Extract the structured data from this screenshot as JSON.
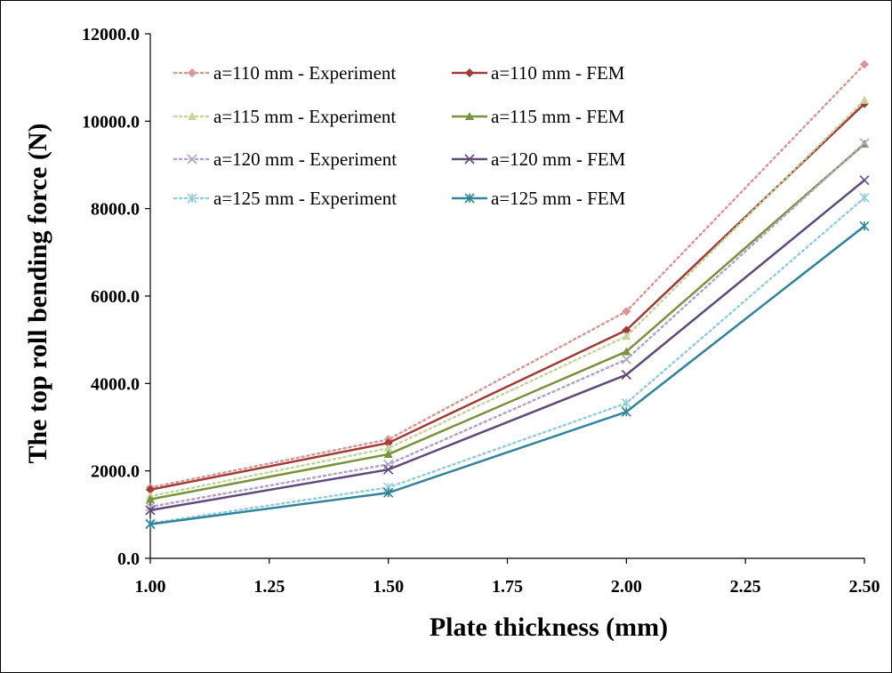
{
  "chart_data": {
    "type": "line",
    "xlabel": "Plate thickness (mm)",
    "ylabel": "The top roll bending force (N)",
    "x": [
      1.0,
      1.5,
      2.0,
      2.5
    ],
    "xlim": [
      1.0,
      2.5
    ],
    "ylim": [
      0,
      12000
    ],
    "x_ticks": [
      "1.00",
      "1.25",
      "1.50",
      "1.75",
      "2.00",
      "2.25",
      "2.50"
    ],
    "y_ticks": [
      "0.0",
      "2000.0",
      "4000.0",
      "6000.0",
      "8000.0",
      "10000.0",
      "12000.0"
    ],
    "grid": false,
    "legend_position": "top-left",
    "series": [
      {
        "name": "a=110 mm - Experiment",
        "values": [
          1620,
          2720,
          5650,
          11300
        ],
        "color": "#d99694",
        "style": "dotted",
        "marker": "diamond"
      },
      {
        "name": "a=110 mm - FEM",
        "values": [
          1570,
          2640,
          5220,
          10400
        ],
        "color": "#a33a36",
        "style": "solid",
        "marker": "diamond"
      },
      {
        "name": "a=115 mm - Experiment",
        "values": [
          1420,
          2520,
          5080,
          10480
        ],
        "color": "#c3d69b",
        "style": "dotted",
        "marker": "triangle"
      },
      {
        "name": "a=115 mm - FEM",
        "values": [
          1350,
          2380,
          4730,
          9480
        ],
        "color": "#77933c",
        "style": "solid",
        "marker": "triangle"
      },
      {
        "name": "a=120 mm - Experiment",
        "values": [
          1180,
          2150,
          4550,
          9500
        ],
        "color": "#b3a2c7",
        "style": "dotted",
        "marker": "x"
      },
      {
        "name": "a=120 mm - FEM",
        "values": [
          1100,
          2030,
          4200,
          8650
        ],
        "color": "#604a7b",
        "style": "solid",
        "marker": "x"
      },
      {
        "name": "a=125 mm - Experiment",
        "values": [
          800,
          1620,
          3550,
          8250
        ],
        "color": "#93cddd",
        "style": "dotted",
        "marker": "star"
      },
      {
        "name": "a=125 mm - FEM",
        "values": [
          780,
          1500,
          3350,
          7600
        ],
        "color": "#31849b",
        "style": "solid",
        "marker": "star"
      }
    ]
  }
}
